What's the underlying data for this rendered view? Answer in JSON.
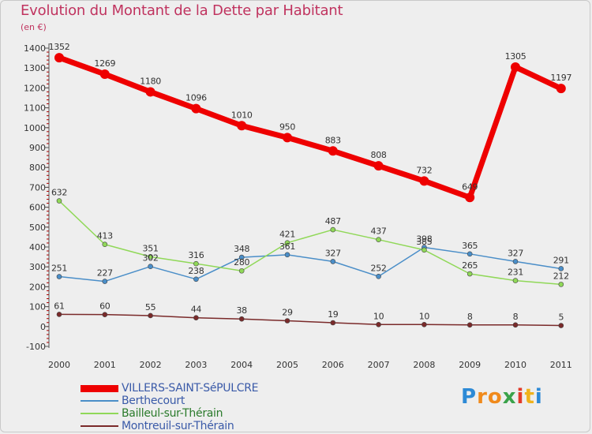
{
  "title": "Evolution du Montant de la Dette par Habitant",
  "subtitle": "(en €)",
  "logo": {
    "letters": [
      "P",
      "r",
      "o",
      "x",
      "i",
      "t",
      "i"
    ],
    "colors": [
      "#2d8ad6",
      "#f08a1c",
      "#f08a1c",
      "#3aa24a",
      "#e23a2a",
      "#f0b21c",
      "#2d8ad6"
    ]
  },
  "colors": {
    "title": "#c0335f",
    "axis": "#555555",
    "grid": "#bbbbbb"
  },
  "chart_data": {
    "type": "line",
    "title": "Evolution du Montant de la Dette par Habitant",
    "ylabel": "(en €)",
    "xlabel": "",
    "ylim": [
      -100,
      1400
    ],
    "yticks": [
      -100,
      0,
      100,
      200,
      300,
      400,
      500,
      600,
      700,
      800,
      900,
      1000,
      1100,
      1200,
      1300,
      1400
    ],
    "x": [
      "2000",
      "2001",
      "2002",
      "2003",
      "2004",
      "2005",
      "2006",
      "2007",
      "2008",
      "2009",
      "2010",
      "2011"
    ],
    "legend_position": "bottom-left",
    "grid": false,
    "series": [
      {
        "name": "VILLERS-SAINT-SéPULCRE",
        "color": "#ee0000",
        "bold": true,
        "values": [
          1352,
          1269,
          1180,
          1096,
          1010,
          950,
          883,
          808,
          732,
          649,
          1305,
          1197
        ]
      },
      {
        "name": "Berthecourt",
        "color": "#4a8ec8",
        "bold": false,
        "values": [
          251,
          227,
          302,
          238,
          348,
          361,
          327,
          252,
          398,
          365,
          327,
          291
        ]
      },
      {
        "name": "Bailleul-sur-Thérain",
        "color": "#90d858",
        "bold": false,
        "values": [
          632,
          413,
          351,
          316,
          280,
          421,
          487,
          437,
          385,
          265,
          231,
          212
        ]
      },
      {
        "name": "Montreuil-sur-Thérain",
        "color": "#7a2a2a",
        "bold": false,
        "values": [
          61,
          60,
          55,
          44,
          38,
          29,
          19,
          10,
          10,
          8,
          8,
          5
        ]
      }
    ]
  }
}
